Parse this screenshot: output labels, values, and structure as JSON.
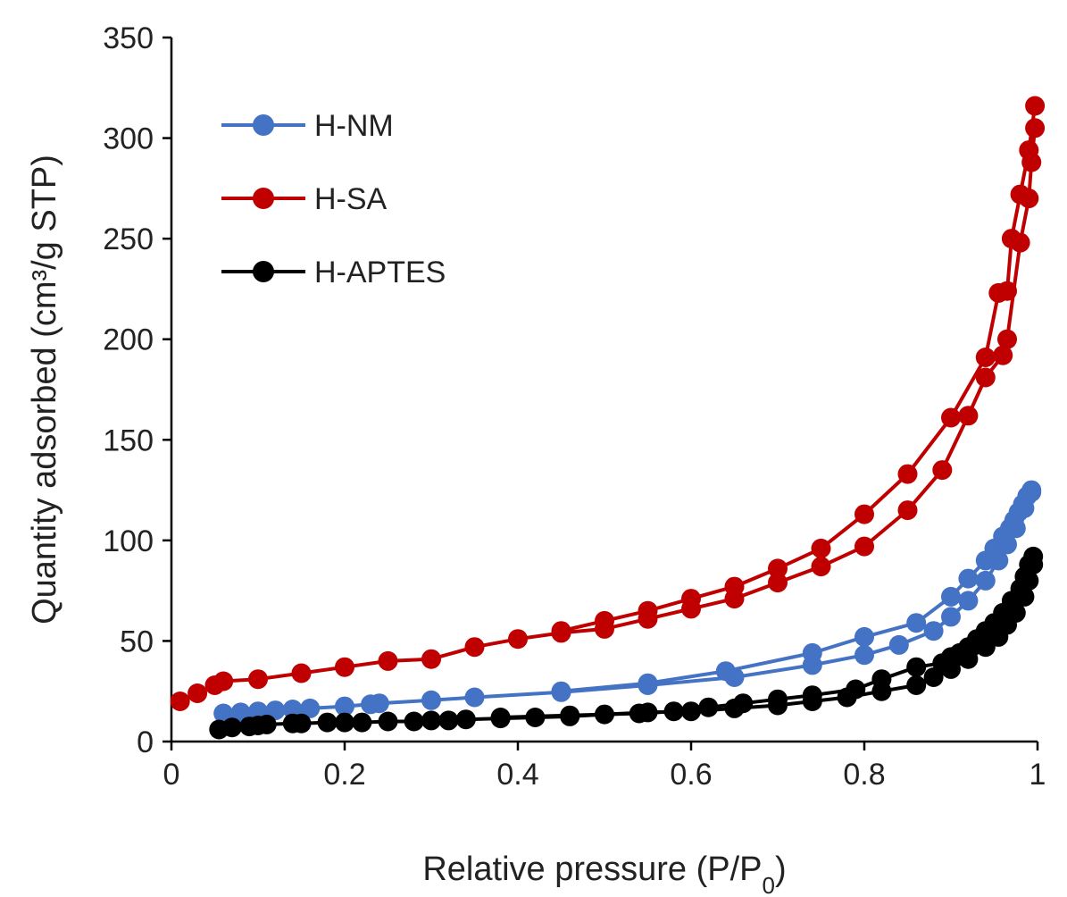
{
  "chart_data": {
    "type": "line",
    "title": "",
    "xlabel": "Relative pressure (P/P",
    "xlabel_sub": "0",
    "xlabel_tail": ")",
    "ylabel": "Quantity adsorbed (cm³/g STP)",
    "xlim": [
      0,
      1
    ],
    "ylim": [
      0,
      350
    ],
    "xticks": [
      0,
      0.2,
      0.4,
      0.6,
      0.8,
      1
    ],
    "xtick_labels": [
      "0",
      "0.2",
      "0.4",
      "0.6",
      "0.8",
      "1"
    ],
    "yticks": [
      0,
      50,
      100,
      150,
      200,
      250,
      300,
      350
    ],
    "ytick_labels": [
      "0",
      "50",
      "100",
      "150",
      "200",
      "250",
      "300",
      "350"
    ],
    "grid": false,
    "legend_position": "top-left",
    "series": [
      {
        "name": "H-NM",
        "color": "#4472C4",
        "adsorption": [
          [
            0.06,
            14
          ],
          [
            0.08,
            14.5
          ],
          [
            0.1,
            15
          ],
          [
            0.12,
            15.5
          ],
          [
            0.14,
            16
          ],
          [
            0.16,
            16.5
          ],
          [
            0.2,
            17.5
          ],
          [
            0.23,
            18.5
          ],
          [
            0.24,
            19
          ],
          [
            0.3,
            20.5
          ],
          [
            0.35,
            22
          ],
          [
            0.45,
            24.5
          ],
          [
            0.55,
            28
          ],
          [
            0.65,
            32
          ],
          [
            0.74,
            38
          ],
          [
            0.8,
            43
          ],
          [
            0.84,
            48
          ],
          [
            0.88,
            55
          ],
          [
            0.9,
            62
          ],
          [
            0.92,
            70
          ],
          [
            0.94,
            80
          ],
          [
            0.955,
            90
          ],
          [
            0.965,
            98
          ],
          [
            0.975,
            106
          ],
          [
            0.985,
            116
          ],
          [
            0.993,
            124
          ]
        ],
        "desorption": [
          [
            0.993,
            125
          ],
          [
            0.988,
            122
          ],
          [
            0.983,
            118
          ],
          [
            0.978,
            114
          ],
          [
            0.973,
            110
          ],
          [
            0.968,
            106
          ],
          [
            0.96,
            102
          ],
          [
            0.95,
            96
          ],
          [
            0.94,
            90
          ],
          [
            0.92,
            81
          ],
          [
            0.9,
            72
          ],
          [
            0.86,
            59
          ],
          [
            0.8,
            52
          ],
          [
            0.74,
            44
          ],
          [
            0.64,
            35
          ],
          [
            0.55,
            29
          ],
          [
            0.45,
            25
          ]
        ]
      },
      {
        "name": "H-SA",
        "color": "#C00000",
        "adsorption": [
          [
            0.01,
            20
          ],
          [
            0.03,
            24
          ],
          [
            0.05,
            28
          ],
          [
            0.06,
            30
          ],
          [
            0.1,
            31
          ],
          [
            0.15,
            34
          ],
          [
            0.2,
            37
          ],
          [
            0.25,
            40
          ],
          [
            0.3,
            41
          ],
          [
            0.35,
            47
          ],
          [
            0.4,
            51
          ],
          [
            0.45,
            54
          ],
          [
            0.5,
            56
          ],
          [
            0.55,
            61
          ],
          [
            0.6,
            66
          ],
          [
            0.65,
            71
          ],
          [
            0.7,
            79
          ],
          [
            0.75,
            87
          ],
          [
            0.8,
            97
          ],
          [
            0.85,
            115
          ],
          [
            0.89,
            135
          ],
          [
            0.92,
            162
          ],
          [
            0.94,
            181
          ],
          [
            0.96,
            192
          ],
          [
            0.965,
            200
          ],
          [
            0.98,
            248
          ],
          [
            0.99,
            270
          ],
          [
            0.993,
            288
          ],
          [
            0.997,
            305
          ]
        ],
        "desorption": [
          [
            0.997,
            316
          ],
          [
            0.99,
            294
          ],
          [
            0.98,
            272
          ],
          [
            0.97,
            250
          ],
          [
            0.965,
            224
          ],
          [
            0.955,
            223
          ],
          [
            0.94,
            191
          ],
          [
            0.9,
            161
          ],
          [
            0.85,
            133
          ],
          [
            0.8,
            113
          ],
          [
            0.75,
            96
          ],
          [
            0.7,
            86
          ],
          [
            0.65,
            77
          ],
          [
            0.6,
            71
          ],
          [
            0.55,
            65
          ],
          [
            0.5,
            60
          ],
          [
            0.45,
            55
          ]
        ]
      },
      {
        "name": "H-APTES",
        "color": "#000000",
        "adsorption": [
          [
            0.055,
            6
          ],
          [
            0.07,
            7
          ],
          [
            0.09,
            7.5
          ],
          [
            0.1,
            8
          ],
          [
            0.11,
            8.5
          ],
          [
            0.14,
            9
          ],
          [
            0.15,
            9
          ],
          [
            0.18,
            9.5
          ],
          [
            0.2,
            9.5
          ],
          [
            0.22,
            9.5
          ],
          [
            0.25,
            10
          ],
          [
            0.28,
            10
          ],
          [
            0.3,
            10.5
          ],
          [
            0.32,
            10.5
          ],
          [
            0.34,
            11
          ],
          [
            0.38,
            11.5
          ],
          [
            0.42,
            12
          ],
          [
            0.46,
            12.5
          ],
          [
            0.5,
            13.5
          ],
          [
            0.55,
            14.5
          ],
          [
            0.6,
            15
          ],
          [
            0.65,
            16.5
          ],
          [
            0.7,
            18
          ],
          [
            0.74,
            20
          ],
          [
            0.78,
            22
          ],
          [
            0.82,
            25
          ],
          [
            0.86,
            28
          ],
          [
            0.88,
            32
          ],
          [
            0.9,
            36
          ],
          [
            0.92,
            41
          ],
          [
            0.94,
            47
          ],
          [
            0.955,
            52
          ],
          [
            0.965,
            58
          ],
          [
            0.975,
            64
          ],
          [
            0.985,
            72
          ],
          [
            0.99,
            80
          ],
          [
            0.995,
            88
          ]
        ],
        "desorption": [
          [
            0.995,
            92
          ],
          [
            0.99,
            88
          ],
          [
            0.985,
            82
          ],
          [
            0.98,
            76
          ],
          [
            0.97,
            70
          ],
          [
            0.96,
            64
          ],
          [
            0.95,
            59
          ],
          [
            0.94,
            55
          ],
          [
            0.93,
            51
          ],
          [
            0.92,
            47
          ],
          [
            0.91,
            44
          ],
          [
            0.9,
            42
          ],
          [
            0.89,
            39
          ],
          [
            0.86,
            37
          ],
          [
            0.82,
            31
          ],
          [
            0.79,
            26
          ],
          [
            0.74,
            23
          ],
          [
            0.7,
            21
          ],
          [
            0.66,
            19
          ],
          [
            0.62,
            17
          ],
          [
            0.58,
            15
          ],
          [
            0.54,
            14
          ],
          [
            0.46,
            13
          ],
          [
            0.38,
            12
          ]
        ]
      }
    ]
  }
}
